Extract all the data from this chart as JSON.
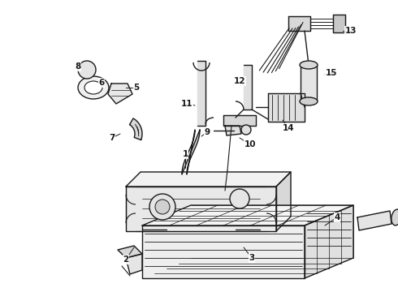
{
  "background_color": "#ffffff",
  "line_color": "#1a1a1a",
  "figsize": [
    4.9,
    3.6
  ],
  "dpi": 100,
  "lw": 1.0,
  "label_fontsize": 7.5
}
